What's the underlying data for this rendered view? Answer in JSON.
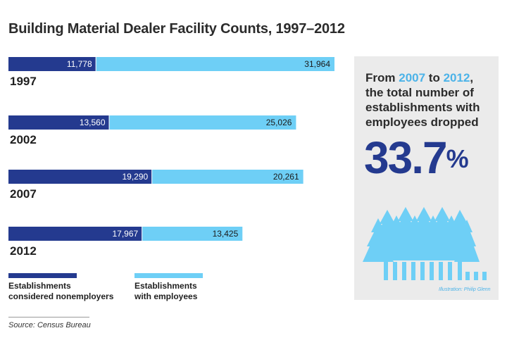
{
  "title": "Building Material Dealer Facility Counts, 1997–2012",
  "colors": {
    "nonemployers": "#243a8f",
    "employees": "#6ecff6",
    "accent": "#4cb3e8",
    "panel_bg": "#ebebeb"
  },
  "chart_data": {
    "type": "bar",
    "orientation": "horizontal",
    "stacked": true,
    "categories": [
      "1997",
      "2002",
      "2007",
      "2012"
    ],
    "series": [
      {
        "name": "Establishments considered nonemployers",
        "values": [
          11778,
          13560,
          19290,
          17967
        ]
      },
      {
        "name": "Establishments with employees",
        "values": [
          31964,
          25026,
          20261,
          13425
        ]
      }
    ],
    "value_labels": [
      [
        "11,778",
        "13,560",
        "19,290",
        "17,967"
      ],
      [
        "31,964",
        "25,026",
        "20,261",
        "13,425"
      ]
    ],
    "title": "Building Material Dealer Facility Counts, 1997–2012",
    "xlabel": "",
    "ylabel": "",
    "legend_position": "bottom",
    "grid": false
  },
  "legend": {
    "nonemployers": [
      "Establishments",
      "considered nonemployers"
    ],
    "employees": [
      "Establishments",
      "with employees"
    ]
  },
  "source": "Source: Census Bureau",
  "callout": {
    "from_word": "From",
    "year_start": "2007",
    "to_word": "to",
    "year_end": "2012",
    "comma": ",",
    "line2": "the total number of",
    "line3": "establishments with",
    "line4": "employees dropped",
    "big_number": "33.7",
    "percent_sign": "%"
  },
  "credit": "Illustration: Philip Glenn"
}
